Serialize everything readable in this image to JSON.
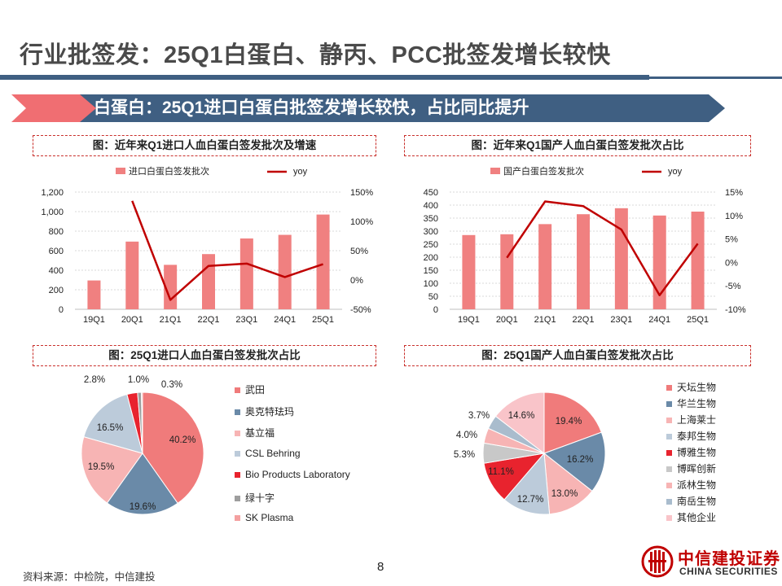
{
  "page": {
    "title": "行业批签发：25Q1白蛋白、静丙、PCC批签发增长较快",
    "section_title": "白蛋白：25Q1进口白蛋白批签发增长较快，占比同比提升",
    "source": "资料来源：中检院，中信建投",
    "page_number": "8",
    "brand_cn": "中信建投证券",
    "brand_en": "CHINA SECURITIES",
    "colors": {
      "bar": "#f08080",
      "line": "#c00000",
      "rule": "#3f5f82",
      "banner_dark": "#3f5f82",
      "banner_light": "#f06e72"
    }
  },
  "chart_data": [
    {
      "id": "import-bar",
      "type": "bar",
      "title": "图：近年来Q1进口人血白蛋白签发批次及增速",
      "categories": [
        "19Q1",
        "20Q1",
        "21Q1",
        "22Q1",
        "23Q1",
        "24Q1",
        "25Q1"
      ],
      "series": [
        {
          "name": "进口白蛋白签发批次",
          "kind": "bar",
          "axis": "left",
          "color": "#f08080",
          "values": [
            295,
            693,
            455,
            565,
            725,
            762,
            970
          ]
        },
        {
          "name": "yoy",
          "kind": "line",
          "axis": "right",
          "color": "#c00000",
          "values": [
            null,
            1.35,
            -0.34,
            0.24,
            0.28,
            0.05,
            0.27
          ]
        }
      ],
      "y_ticks": [
        "1,200",
        "1,000",
        "800",
        "600",
        "400",
        "200",
        "0"
      ],
      "y2_ticks": [
        "150%",
        "100%",
        "50%",
        "0%",
        "-50%"
      ],
      "ylim": [
        0,
        1200
      ],
      "y2lim": [
        -0.5,
        1.5
      ],
      "grid": true,
      "legend": "top"
    },
    {
      "id": "domestic-bar",
      "type": "bar",
      "title": "图：近年来Q1国产人血白蛋白签发批次占比",
      "categories": [
        "19Q1",
        "20Q1",
        "21Q1",
        "22Q1",
        "23Q1",
        "24Q1",
        "25Q1"
      ],
      "series": [
        {
          "name": "国产白蛋白签发批次",
          "kind": "bar",
          "axis": "left",
          "color": "#f08080",
          "values": [
            285,
            288,
            327,
            365,
            388,
            360,
            375
          ]
        },
        {
          "name": "yoy",
          "kind": "line",
          "axis": "right",
          "color": "#c00000",
          "values": [
            null,
            0.01,
            0.13,
            0.12,
            0.07,
            -0.07,
            0.04
          ]
        }
      ],
      "y_ticks": [
        "450",
        "400",
        "350",
        "300",
        "250",
        "200",
        "150",
        "100",
        "50",
        "0"
      ],
      "y2_ticks": [
        "15%",
        "10%",
        "5%",
        "0%",
        "-5%",
        "-10%"
      ],
      "ylim": [
        0,
        450
      ],
      "y2lim": [
        -0.1,
        0.15
      ],
      "grid": true,
      "legend": "top"
    },
    {
      "id": "import-pie",
      "type": "pie",
      "title": "图：25Q1进口人血白蛋白签发批次占比",
      "legend": "right",
      "slices": [
        {
          "label": "武田",
          "value": 40.2,
          "display": "40.2%",
          "color": "#f07b7b"
        },
        {
          "label": "奥克特珐玛",
          "value": 19.6,
          "display": "19.6%",
          "color": "#6a8aa8"
        },
        {
          "label": "基立福",
          "value": 19.5,
          "display": "19.5%",
          "color": "#f7b4b4"
        },
        {
          "label": "CSL Behring",
          "value": 16.5,
          "display": "16.5%",
          "color": "#bccbda"
        },
        {
          "label": "Bio Products Laboratory",
          "value": 2.8,
          "display": "2.8%",
          "color": "#e8232e"
        },
        {
          "label": "绿十字",
          "value": 1.0,
          "display": "1.0%",
          "color": "#9e9e9e"
        },
        {
          "label": "SK Plasma",
          "value": 0.3,
          "display": "0.3%",
          "color": "#f4a0a0"
        }
      ]
    },
    {
      "id": "domestic-pie",
      "type": "pie",
      "title": "图：25Q1国产人血白蛋白签发批次占比",
      "legend": "right",
      "slices": [
        {
          "label": "天坛生物",
          "value": 19.4,
          "display": "19.4%",
          "color": "#f07b7b"
        },
        {
          "label": "华兰生物",
          "value": 16.2,
          "display": "16.2%",
          "color": "#6a8aa8"
        },
        {
          "label": "上海莱士",
          "value": 13.0,
          "display": "13.0%",
          "color": "#f7b4b4"
        },
        {
          "label": "泰邦生物",
          "value": 12.7,
          "display": "12.7%",
          "color": "#bccbda"
        },
        {
          "label": "博雅生物",
          "value": 11.1,
          "display": "11.1%",
          "color": "#e8232e"
        },
        {
          "label": "博晖创新",
          "value": 5.3,
          "display": "5.3%",
          "color": "#c8c8c8"
        },
        {
          "label": "派林生物",
          "value": 4.0,
          "display": "4.0%",
          "color": "#f7b4b4"
        },
        {
          "label": "南岳生物",
          "value": 3.7,
          "display": "3.7%",
          "color": "#a9bccd"
        },
        {
          "label": "其他企业",
          "value": 14.6,
          "display": "14.6%",
          "color": "#f9c4c9"
        }
      ]
    }
  ]
}
